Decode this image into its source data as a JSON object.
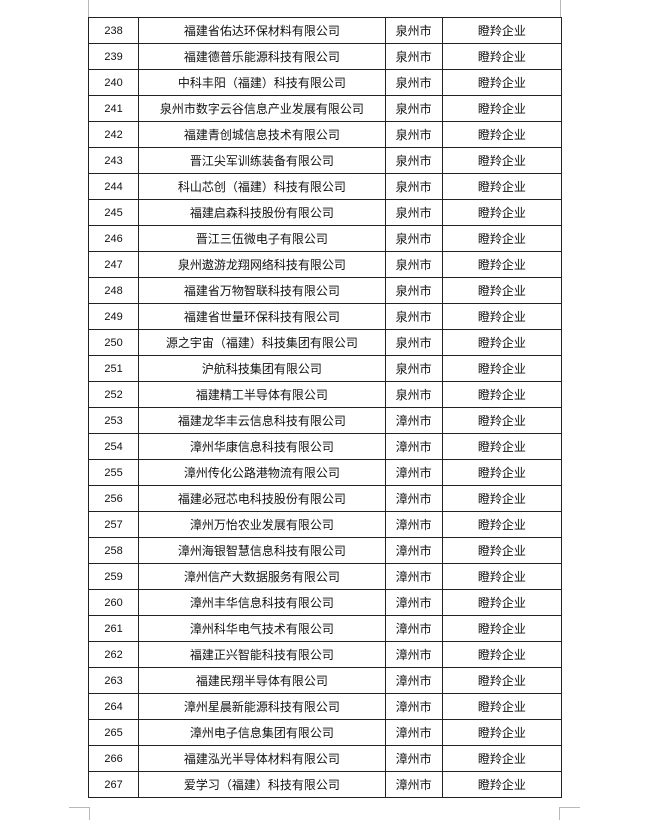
{
  "rows": [
    {
      "no": "238",
      "name": "福建省佑达环保材料有限公司",
      "city": "泉州市",
      "type": "瞪羚企业"
    },
    {
      "no": "239",
      "name": "福建德普乐能源科技有限公司",
      "city": "泉州市",
      "type": "瞪羚企业"
    },
    {
      "no": "240",
      "name": "中科丰阳（福建）科技有限公司",
      "city": "泉州市",
      "type": "瞪羚企业"
    },
    {
      "no": "241",
      "name": "泉州市数字云谷信息产业发展有限公司",
      "city": "泉州市",
      "type": "瞪羚企业"
    },
    {
      "no": "242",
      "name": "福建青创城信息技术有限公司",
      "city": "泉州市",
      "type": "瞪羚企业"
    },
    {
      "no": "243",
      "name": "晋江尖军训练装备有限公司",
      "city": "泉州市",
      "type": "瞪羚企业"
    },
    {
      "no": "244",
      "name": "科山芯创（福建）科技有限公司",
      "city": "泉州市",
      "type": "瞪羚企业"
    },
    {
      "no": "245",
      "name": "福建启森科技股份有限公司",
      "city": "泉州市",
      "type": "瞪羚企业"
    },
    {
      "no": "246",
      "name": "晋江三伍微电子有限公司",
      "city": "泉州市",
      "type": "瞪羚企业"
    },
    {
      "no": "247",
      "name": "泉州遨游龙翔网络科技有限公司",
      "city": "泉州市",
      "type": "瞪羚企业"
    },
    {
      "no": "248",
      "name": "福建省万物智联科技有限公司",
      "city": "泉州市",
      "type": "瞪羚企业"
    },
    {
      "no": "249",
      "name": "福建省世量环保科技有限公司",
      "city": "泉州市",
      "type": "瞪羚企业"
    },
    {
      "no": "250",
      "name": "源之宇宙（福建）科技集团有限公司",
      "city": "泉州市",
      "type": "瞪羚企业"
    },
    {
      "no": "251",
      "name": "沪航科技集团有限公司",
      "city": "泉州市",
      "type": "瞪羚企业"
    },
    {
      "no": "252",
      "name": "福建精工半导体有限公司",
      "city": "泉州市",
      "type": "瞪羚企业"
    },
    {
      "no": "253",
      "name": "福建龙华丰云信息科技有限公司",
      "city": "漳州市",
      "type": "瞪羚企业"
    },
    {
      "no": "254",
      "name": "漳州华康信息科技有限公司",
      "city": "漳州市",
      "type": "瞪羚企业"
    },
    {
      "no": "255",
      "name": "漳州传化公路港物流有限公司",
      "city": "漳州市",
      "type": "瞪羚企业"
    },
    {
      "no": "256",
      "name": "福建必冠芯电科技股份有限公司",
      "city": "漳州市",
      "type": "瞪羚企业"
    },
    {
      "no": "257",
      "name": "漳州万怡农业发展有限公司",
      "city": "漳州市",
      "type": "瞪羚企业"
    },
    {
      "no": "258",
      "name": "漳州海银智慧信息科技有限公司",
      "city": "漳州市",
      "type": "瞪羚企业"
    },
    {
      "no": "259",
      "name": "漳州信产大数据服务有限公司",
      "city": "漳州市",
      "type": "瞪羚企业"
    },
    {
      "no": "260",
      "name": "漳州丰华信息科技有限公司",
      "city": "漳州市",
      "type": "瞪羚企业"
    },
    {
      "no": "261",
      "name": "漳州科华电气技术有限公司",
      "city": "漳州市",
      "type": "瞪羚企业"
    },
    {
      "no": "262",
      "name": "福建正兴智能科技有限公司",
      "city": "漳州市",
      "type": "瞪羚企业"
    },
    {
      "no": "263",
      "name": "福建民翔半导体有限公司",
      "city": "漳州市",
      "type": "瞪羚企业"
    },
    {
      "no": "264",
      "name": "漳州星晨新能源科技有限公司",
      "city": "漳州市",
      "type": "瞪羚企业"
    },
    {
      "no": "265",
      "name": "漳州电子信息集团有限公司",
      "city": "漳州市",
      "type": "瞪羚企业"
    },
    {
      "no": "266",
      "name": "福建泓光半导体材料有限公司",
      "city": "漳州市",
      "type": "瞪羚企业"
    },
    {
      "no": "267",
      "name": "爱学习（福建）科技有限公司",
      "city": "漳州市",
      "type": "瞪羚企业"
    }
  ]
}
